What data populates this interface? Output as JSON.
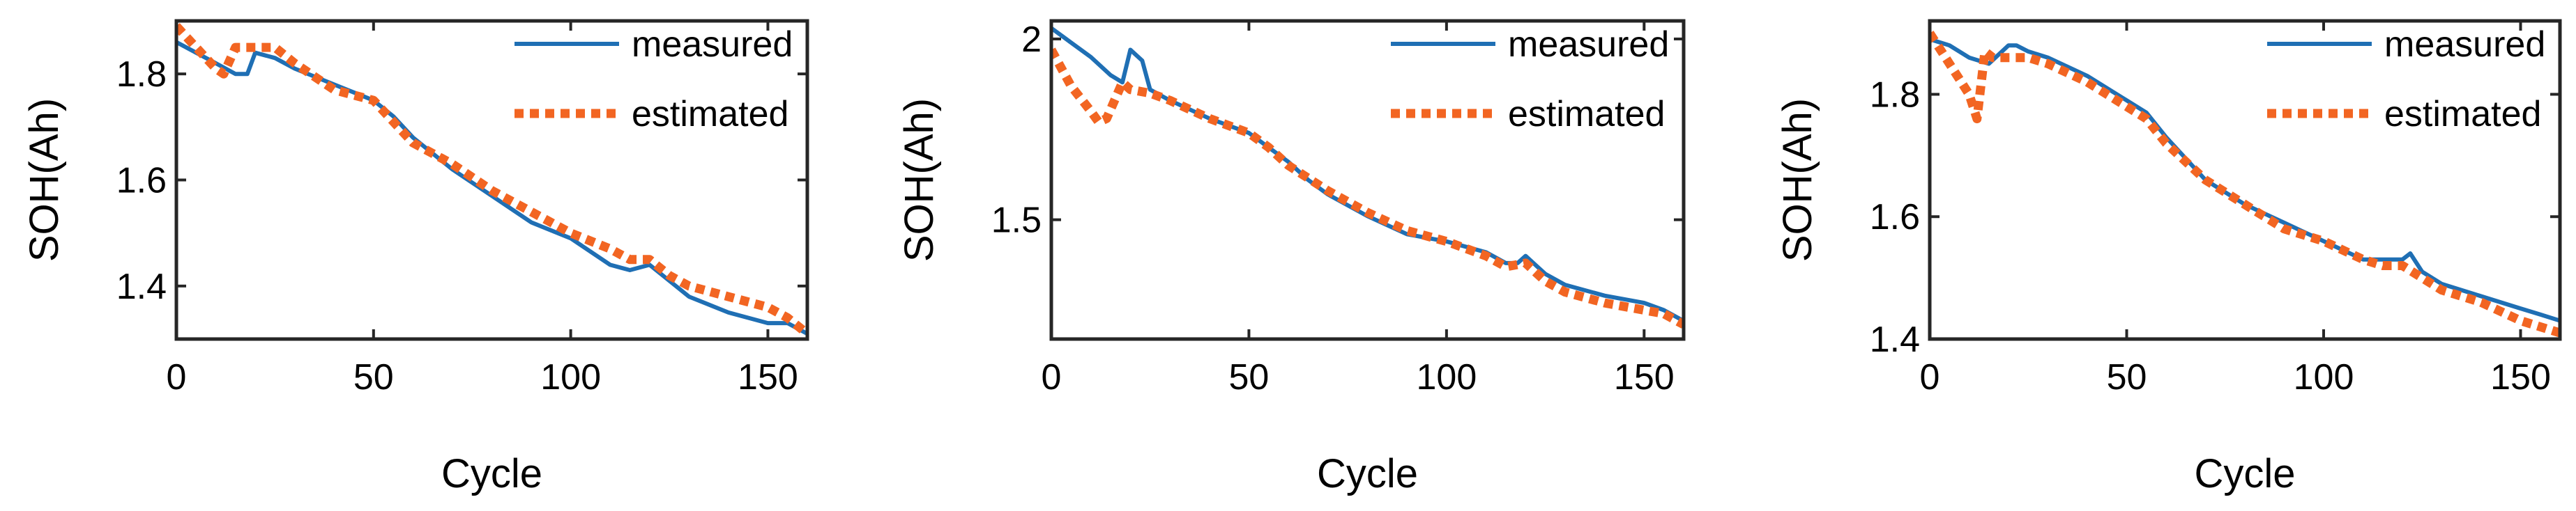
{
  "colors": {
    "measured": "#1f6fb4",
    "estimated": "#f26522",
    "axis": "#262626"
  },
  "chart_data": [
    {
      "type": "line",
      "title": "",
      "xlabel": "Cycle",
      "ylabel": "SOH(Ah)",
      "xlim": [
        0,
        160
      ],
      "ylim": [
        1.3,
        1.9
      ],
      "xticks": [
        0,
        50,
        100,
        150
      ],
      "yticks": [
        1.4,
        1.6,
        1.8
      ],
      "grid": false,
      "legend": "top-right",
      "series": [
        {
          "name": "measured",
          "style": "solid",
          "x": [
            0,
            5,
            10,
            15,
            18,
            20,
            25,
            30,
            40,
            50,
            55,
            60,
            70,
            80,
            90,
            100,
            110,
            115,
            120,
            125,
            130,
            140,
            150,
            155,
            160
          ],
          "y": [
            1.86,
            1.84,
            1.82,
            1.8,
            1.8,
            1.84,
            1.83,
            1.81,
            1.78,
            1.75,
            1.72,
            1.68,
            1.62,
            1.57,
            1.52,
            1.49,
            1.44,
            1.43,
            1.44,
            1.41,
            1.38,
            1.35,
            1.33,
            1.33,
            1.31
          ]
        },
        {
          "name": "estimated",
          "style": "dotted",
          "x": [
            0,
            5,
            10,
            12,
            15,
            20,
            25,
            30,
            40,
            50,
            55,
            60,
            70,
            80,
            90,
            100,
            110,
            115,
            120,
            125,
            130,
            140,
            150,
            155,
            160
          ],
          "y": [
            1.89,
            1.85,
            1.81,
            1.8,
            1.85,
            1.85,
            1.85,
            1.82,
            1.77,
            1.75,
            1.71,
            1.67,
            1.63,
            1.58,
            1.54,
            1.5,
            1.47,
            1.45,
            1.45,
            1.42,
            1.4,
            1.38,
            1.36,
            1.34,
            1.31
          ]
        }
      ]
    },
    {
      "type": "line",
      "title": "",
      "xlabel": "Cycle",
      "ylabel": "SOH(Ah)",
      "xlim": [
        0,
        160
      ],
      "ylim": [
        1.17,
        2.05
      ],
      "xticks": [
        0,
        50,
        100,
        150
      ],
      "yticks": [
        1.5,
        2
      ],
      "ytick_labels": [
        "1.5",
        "2"
      ],
      "grid": false,
      "legend": "top-right",
      "series": [
        {
          "name": "measured",
          "style": "solid",
          "x": [
            0,
            5,
            10,
            15,
            18,
            20,
            23,
            25,
            30,
            40,
            50,
            55,
            60,
            65,
            70,
            80,
            90,
            100,
            110,
            115,
            118,
            120,
            125,
            130,
            140,
            150,
            155,
            160
          ],
          "y": [
            2.03,
            1.99,
            1.95,
            1.9,
            1.88,
            1.97,
            1.94,
            1.86,
            1.83,
            1.78,
            1.74,
            1.7,
            1.66,
            1.61,
            1.57,
            1.51,
            1.46,
            1.44,
            1.41,
            1.38,
            1.38,
            1.4,
            1.35,
            1.32,
            1.29,
            1.27,
            1.25,
            1.22
          ]
        },
        {
          "name": "estimated",
          "style": "dotted",
          "x": [
            0,
            5,
            10,
            12,
            14,
            18,
            20,
            25,
            30,
            40,
            50,
            55,
            60,
            70,
            80,
            90,
            100,
            110,
            115,
            120,
            125,
            130,
            140,
            150,
            155,
            160
          ],
          "y": [
            1.97,
            1.87,
            1.8,
            1.77,
            1.78,
            1.88,
            1.86,
            1.85,
            1.83,
            1.78,
            1.74,
            1.7,
            1.65,
            1.58,
            1.52,
            1.47,
            1.44,
            1.4,
            1.37,
            1.38,
            1.33,
            1.3,
            1.27,
            1.25,
            1.24,
            1.21
          ]
        }
      ]
    },
    {
      "type": "line",
      "title": "",
      "xlabel": "Cycle",
      "ylabel": "SOH(Ah)",
      "xlim": [
        0,
        160
      ],
      "ylim": [
        1.4,
        1.92
      ],
      "xticks": [
        0,
        50,
        100,
        150
      ],
      "yticks": [
        1.4,
        1.6,
        1.8
      ],
      "grid": false,
      "legend": "top-right",
      "series": [
        {
          "name": "measured",
          "style": "solid",
          "x": [
            0,
            5,
            10,
            15,
            20,
            22,
            25,
            30,
            40,
            50,
            55,
            60,
            70,
            80,
            90,
            100,
            110,
            115,
            120,
            122,
            125,
            130,
            140,
            150,
            155,
            160
          ],
          "y": [
            1.89,
            1.88,
            1.86,
            1.85,
            1.88,
            1.88,
            1.87,
            1.86,
            1.83,
            1.79,
            1.77,
            1.73,
            1.66,
            1.62,
            1.59,
            1.56,
            1.53,
            1.53,
            1.53,
            1.54,
            1.51,
            1.49,
            1.47,
            1.45,
            1.44,
            1.43
          ]
        },
        {
          "name": "estimated",
          "style": "dotted",
          "x": [
            0,
            5,
            10,
            12,
            14,
            16,
            20,
            25,
            30,
            40,
            50,
            55,
            60,
            70,
            80,
            90,
            100,
            110,
            115,
            120,
            125,
            130,
            140,
            150,
            155,
            160
          ],
          "y": [
            1.9,
            1.85,
            1.8,
            1.76,
            1.87,
            1.86,
            1.86,
            1.86,
            1.85,
            1.82,
            1.78,
            1.76,
            1.72,
            1.66,
            1.62,
            1.58,
            1.56,
            1.53,
            1.52,
            1.52,
            1.5,
            1.48,
            1.46,
            1.43,
            1.42,
            1.41
          ]
        }
      ]
    }
  ]
}
